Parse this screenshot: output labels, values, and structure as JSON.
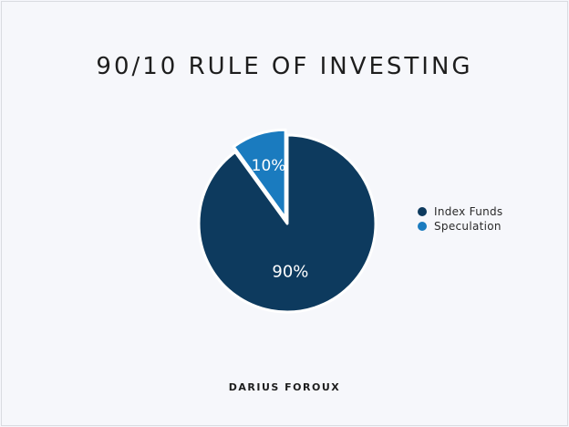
{
  "chart_data": {
    "type": "pie",
    "title": "90/10 RULE OF INVESTING",
    "categories": [
      "Index Funds",
      "Speculation"
    ],
    "values": [
      90,
      10
    ],
    "labels": [
      "90%",
      "10%"
    ],
    "colors": [
      "#0d3a5e",
      "#1a7bbf"
    ],
    "legend_position": "right"
  },
  "author": "DARIUS FOROUX"
}
